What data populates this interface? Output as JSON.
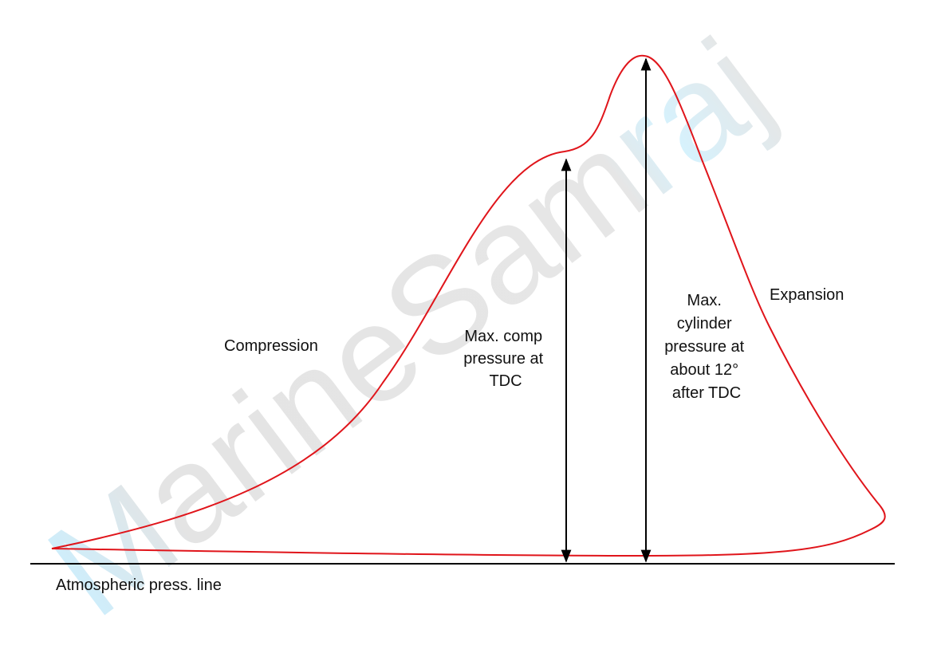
{
  "watermark": "MarineSamraj",
  "labels": {
    "compression": "Compression",
    "max_comp": [
      "Max. comp",
      "pressure at",
      "TDC"
    ],
    "max_cylinder": [
      "Max.",
      "cylinder",
      "pressure at",
      "about 12°",
      "after TDC"
    ],
    "expansion": "Expansion",
    "atmospheric": "Atmospheric press. line"
  }
}
